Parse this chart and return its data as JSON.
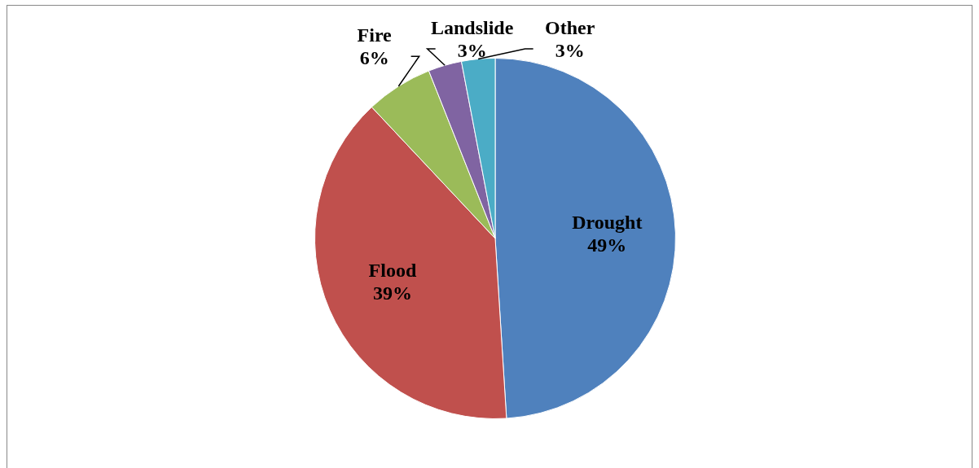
{
  "chart_data": {
    "type": "pie",
    "categories": [
      "Drought",
      "Flood",
      "Fire",
      "Landslide",
      "Other"
    ],
    "values": [
      49,
      39,
      6,
      3,
      3
    ],
    "value_labels": [
      "49%",
      "39%",
      "6%",
      "3%",
      "3%"
    ],
    "colors": [
      "#4f81bd",
      "#c0504d",
      "#9bbb59",
      "#8064a2",
      "#4bacc6"
    ],
    "legend": false
  }
}
